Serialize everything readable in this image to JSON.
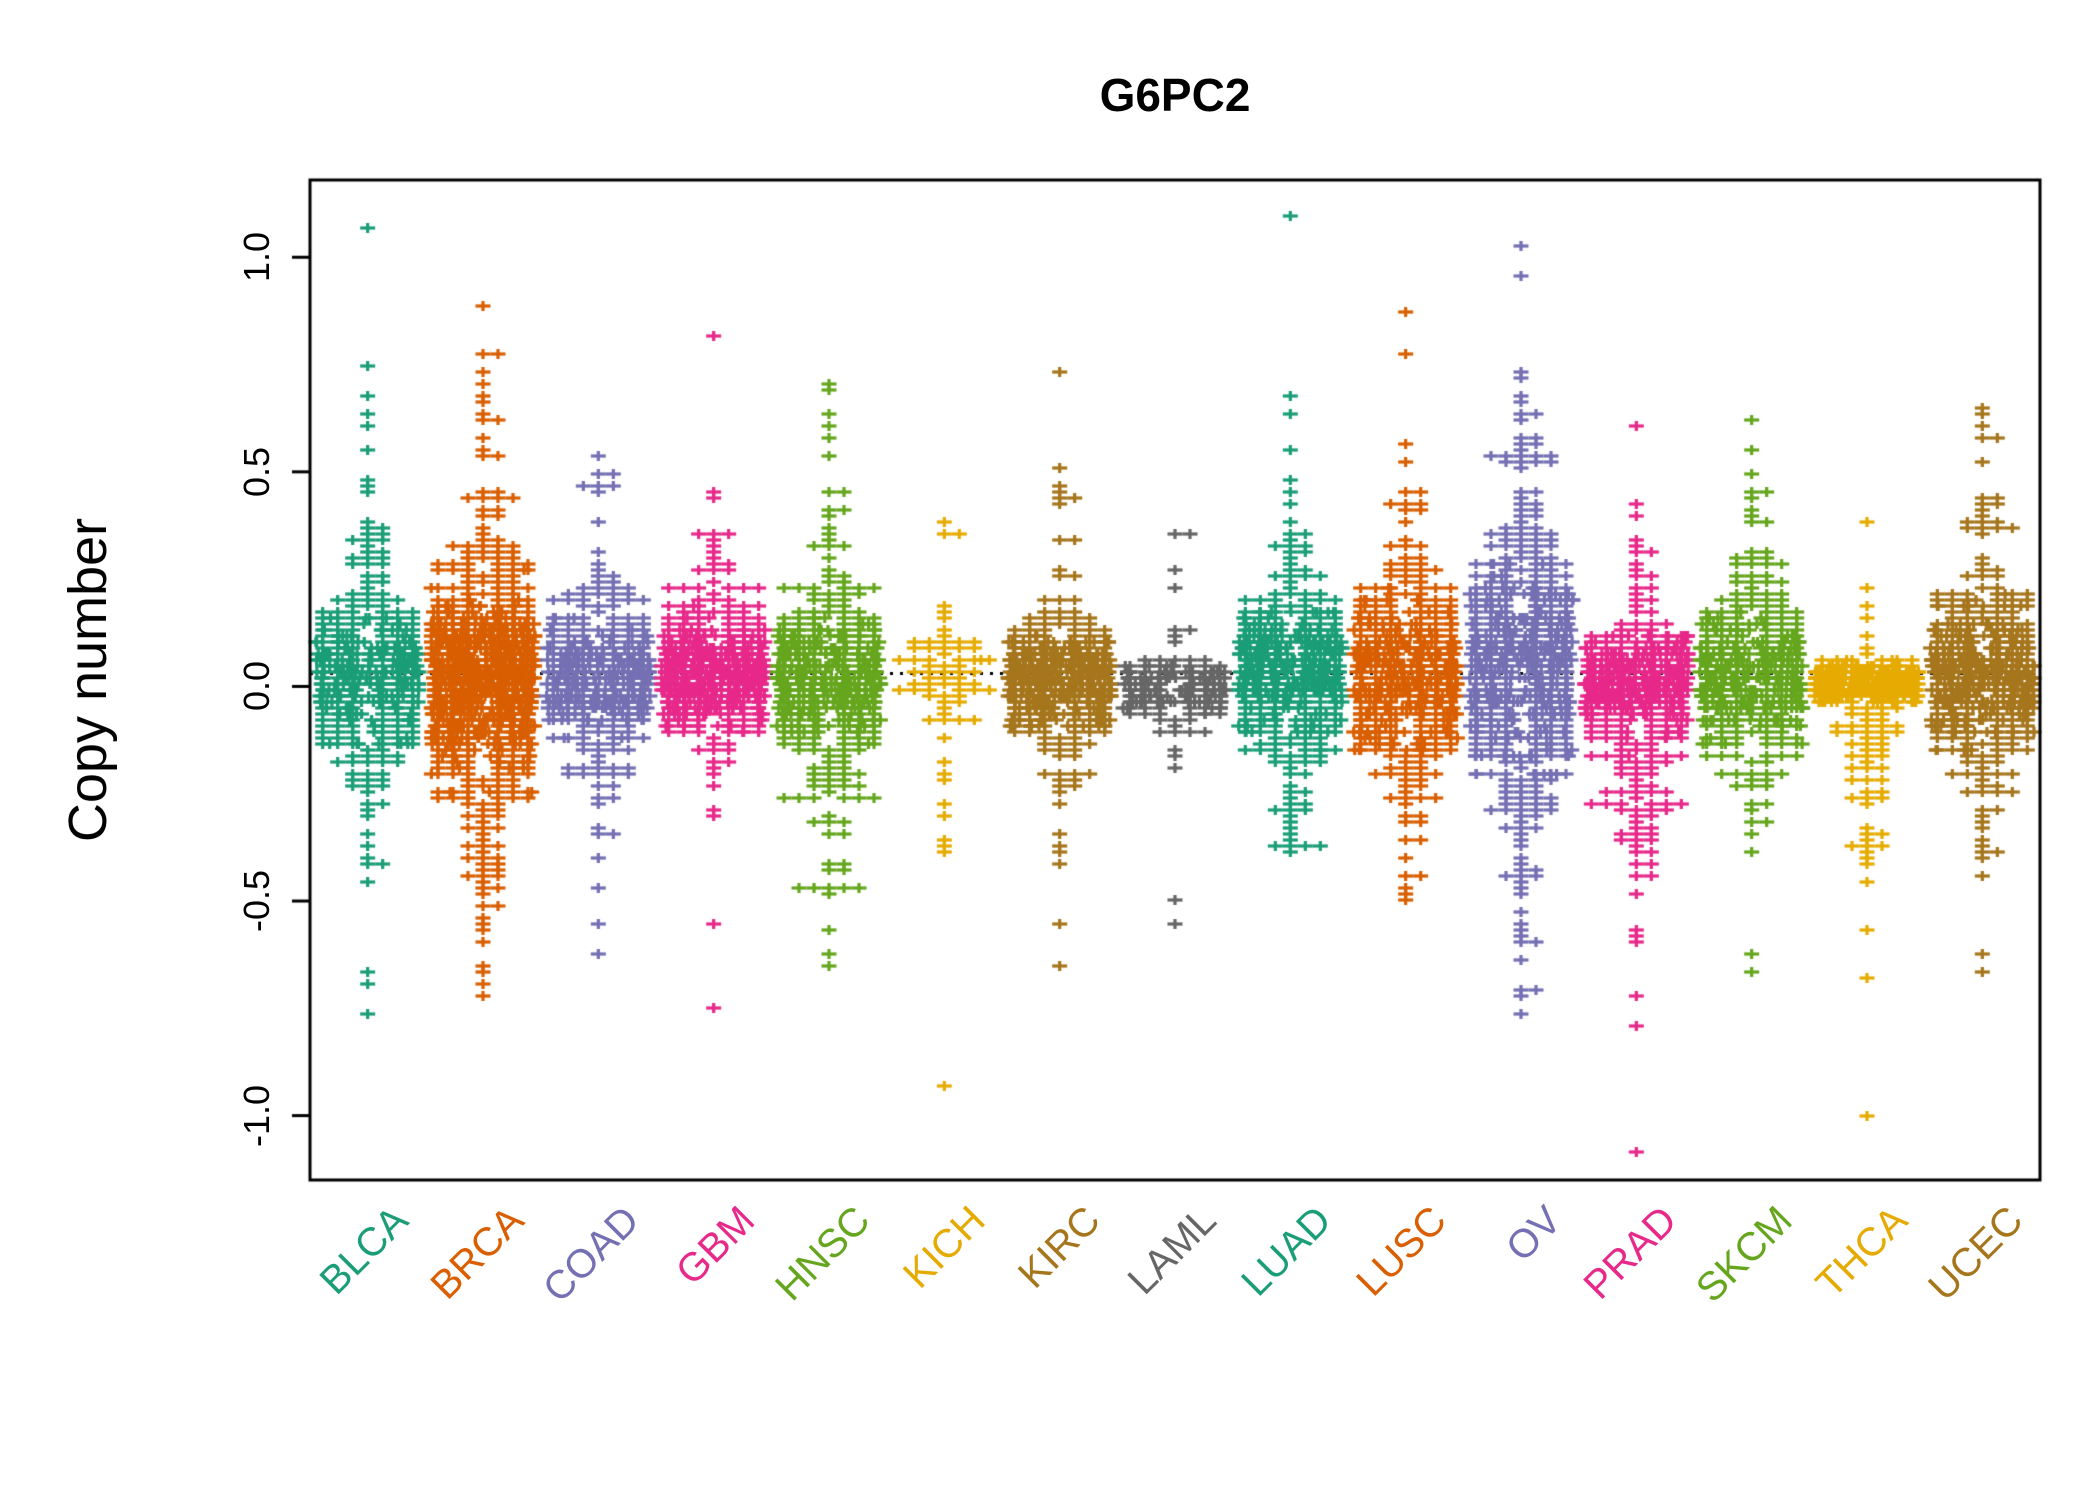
{
  "chart_data": {
    "type": "scatter",
    "subtype": "beeswarm-strip",
    "title": "G6PC2",
    "ylabel": "Copy number",
    "xlabel": "",
    "ylim": [
      -1.15,
      1.18
    ],
    "yticks": [
      "1.0",
      "0.5",
      "0.0",
      "-0.5",
      "-1.0"
    ],
    "ytick_values": [
      1.0,
      0.5,
      0.0,
      -0.5,
      -1.0
    ],
    "reference_line": 0.03,
    "reference_line_style": "dotted-black",
    "grid": false,
    "legend": "none",
    "marker": "plus",
    "categories": [
      {
        "name": "BLCA",
        "color": "#1B9E77",
        "n": 400,
        "center": 0.02,
        "sd_core": 0.08,
        "w_core": 0.72,
        "sd_tail": 0.22,
        "tail_bias": 0.5,
        "min": -0.77,
        "max": 1.07,
        "outliers": [
          1.07,
          0.75,
          0.68,
          0.63,
          -0.7,
          -0.76
        ]
      },
      {
        "name": "BRCA",
        "color": "#D95F02",
        "n": 1000,
        "center": 0.02,
        "sd_core": 0.09,
        "w_core": 0.7,
        "sd_tail": 0.24,
        "tail_bias": 0.55,
        "min": -0.72,
        "max": 0.88,
        "outliers": [
          0.88,
          0.78,
          0.73,
          0.7,
          0.66,
          -0.66,
          -0.7,
          -0.72
        ]
      },
      {
        "name": "COAD",
        "color": "#7570B3",
        "n": 420,
        "center": 0.02,
        "sd_core": 0.07,
        "w_core": 0.72,
        "sd_tail": 0.18,
        "tail_bias": 0.5,
        "min": -0.62,
        "max": 0.53,
        "outliers": [
          0.53,
          0.5,
          0.47,
          -0.55,
          -0.62
        ]
      },
      {
        "name": "GBM",
        "color": "#E7298A",
        "n": 560,
        "center": 0.03,
        "sd_core": 0.06,
        "w_core": 0.78,
        "sd_tail": 0.16,
        "tail_bias": 0.5,
        "min": -0.75,
        "max": 0.82,
        "outliers": [
          0.82,
          0.45,
          0.44,
          -0.75
        ]
      },
      {
        "name": "HNSC",
        "color": "#66A61E",
        "n": 500,
        "center": 0.02,
        "sd_core": 0.08,
        "w_core": 0.7,
        "sd_tail": 0.2,
        "tail_bias": 0.5,
        "min": -0.65,
        "max": 0.71,
        "outliers": [
          0.71,
          0.69,
          0.63,
          0.6,
          -0.62,
          -0.65
        ]
      },
      {
        "name": "KICH",
        "color": "#E6AB02",
        "n": 66,
        "center": 0.03,
        "sd_core": 0.05,
        "w_core": 0.58,
        "sd_tail": 0.24,
        "tail_bias": 0.72,
        "min": -0.93,
        "max": 0.38,
        "outliers": [
          0.38,
          0.35,
          -0.93
        ]
      },
      {
        "name": "KIRC",
        "color": "#A6761D",
        "n": 500,
        "center": 0.02,
        "sd_core": 0.06,
        "w_core": 0.76,
        "sd_tail": 0.17,
        "tail_bias": 0.5,
        "min": -0.65,
        "max": 0.73,
        "outliers": [
          0.73,
          0.47,
          0.46,
          0.44,
          -0.55,
          -0.65
        ]
      },
      {
        "name": "LAML",
        "color": "#666666",
        "n": 170,
        "center": 0.0,
        "sd_core": 0.035,
        "w_core": 0.8,
        "sd_tail": 0.12,
        "tail_bias": 0.55,
        "min": -0.55,
        "max": 0.36,
        "outliers": [
          0.36,
          0.35,
          -0.5,
          -0.55
        ]
      },
      {
        "name": "LUAD",
        "color": "#1B9E77",
        "n": 520,
        "center": 0.03,
        "sd_core": 0.07,
        "w_core": 0.72,
        "sd_tail": 0.19,
        "tail_bias": 0.45,
        "min": -0.38,
        "max": 1.1,
        "outliers": [
          1.1,
          0.68,
          0.63,
          0.55,
          -0.38
        ]
      },
      {
        "name": "LUSC",
        "color": "#D95F02",
        "n": 520,
        "center": 0.02,
        "sd_core": 0.09,
        "w_core": 0.68,
        "sd_tail": 0.22,
        "tail_bias": 0.45,
        "min": -0.5,
        "max": 0.87,
        "outliers": [
          0.87,
          0.78,
          0.57,
          -0.5
        ]
      },
      {
        "name": "OV",
        "color": "#7570B3",
        "n": 600,
        "center": 0.05,
        "sd_core": 0.12,
        "w_core": 0.55,
        "sd_tail": 0.3,
        "tail_bias": 0.48,
        "min": -0.77,
        "max": 1.03,
        "outliers": [
          1.03,
          0.95,
          -0.72,
          -0.77
        ]
      },
      {
        "name": "PRAD",
        "color": "#E7298A",
        "n": 500,
        "center": 0.02,
        "sd_core": 0.05,
        "w_core": 0.72,
        "sd_tail": 0.24,
        "tail_bias": 0.8,
        "min": -1.08,
        "max": 0.6,
        "outliers": [
          0.6,
          0.22,
          0.2,
          -0.79,
          -1.08
        ]
      },
      {
        "name": "SKCM",
        "color": "#66A61E",
        "n": 460,
        "center": 0.02,
        "sd_core": 0.07,
        "w_core": 0.7,
        "sd_tail": 0.2,
        "tail_bias": 0.5,
        "min": -0.67,
        "max": 0.62,
        "outliers": [
          0.62,
          0.55,
          -0.62,
          -0.67
        ]
      },
      {
        "name": "THCA",
        "color": "#E6AB02",
        "n": 500,
        "center": 0.01,
        "sd_core": 0.02,
        "w_core": 0.88,
        "sd_tail": 0.18,
        "tail_bias": 0.8,
        "min": -1.0,
        "max": 0.38,
        "outliers": [
          0.38,
          -0.45,
          -1.0
        ]
      },
      {
        "name": "UCEC",
        "color": "#A6761D",
        "n": 540,
        "center": 0.02,
        "sd_core": 0.07,
        "w_core": 0.66,
        "sd_tail": 0.22,
        "tail_bias": 0.38,
        "min": -0.67,
        "max": 0.65,
        "outliers": [
          0.65,
          0.63,
          0.6,
          -0.62,
          -0.67
        ]
      }
    ],
    "colors": {
      "axis": "#000000",
      "background": "#ffffff"
    }
  }
}
